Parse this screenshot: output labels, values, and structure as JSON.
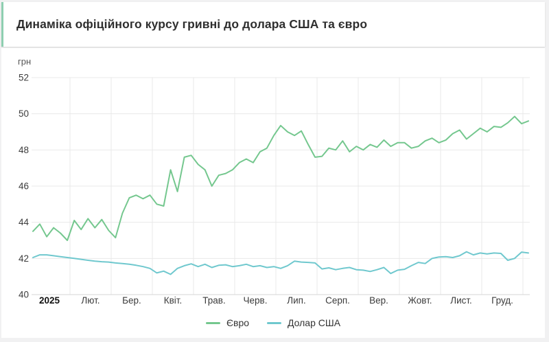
{
  "page": {
    "title": "Динаміка офіційного курсу гривні до долара США та євро"
  },
  "colors": {
    "accent": "#8ecfb0",
    "grid": "#e9e9e9",
    "axis": "#d6d6d6",
    "page_bg": "#f1f1f2",
    "card_bg": "#ffffff",
    "euro_line": "#74c78e",
    "usd_line": "#6fc8ce"
  },
  "chart_data": {
    "type": "line",
    "title": "Динаміка офіційного курсу гривні до долара США та євро",
    "unit_label": "грн",
    "ylabel": "грн",
    "xlabel": "",
    "ylim": [
      40,
      52
    ],
    "y_ticks": [
      52,
      50,
      48,
      46,
      44,
      42,
      40
    ],
    "x_labels": [
      "2025",
      "Лют.",
      "Бер.",
      "Квіт.",
      "Трав.",
      "Черв.",
      "Лип.",
      "Серп.",
      "Вер.",
      "Жовт.",
      "Лист.",
      "Груд."
    ],
    "grid": true,
    "legend_position": "bottom",
    "series": [
      {
        "name": "Євро",
        "color": "#74c78e",
        "values": [
          43.5,
          43.9,
          43.2,
          43.7,
          43.4,
          43.0,
          44.1,
          43.6,
          44.2,
          43.7,
          44.15,
          43.55,
          43.15,
          44.5,
          45.35,
          45.5,
          45.3,
          45.5,
          45.0,
          44.9,
          46.9,
          45.7,
          47.6,
          47.7,
          47.2,
          46.9,
          46.0,
          46.6,
          46.7,
          46.9,
          47.3,
          47.5,
          47.3,
          47.9,
          48.1,
          48.8,
          49.35,
          49.0,
          48.8,
          49.05,
          48.3,
          47.6,
          47.65,
          48.1,
          48.0,
          48.5,
          47.9,
          48.2,
          48.0,
          48.3,
          48.15,
          48.55,
          48.2,
          48.4,
          48.4,
          48.1,
          48.2,
          48.5,
          48.65,
          48.4,
          48.55,
          48.9,
          49.1,
          48.6,
          48.9,
          49.2,
          49.0,
          49.3,
          49.25,
          49.5,
          49.85,
          49.45,
          49.6
        ]
      },
      {
        "name": "Долар США",
        "color": "#6fc8ce",
        "values": [
          42.05,
          42.2,
          42.2,
          42.15,
          42.1,
          42.05,
          42.0,
          41.95,
          41.9,
          41.85,
          41.82,
          41.8,
          41.75,
          41.72,
          41.68,
          41.62,
          41.55,
          41.45,
          41.2,
          41.3,
          41.12,
          41.45,
          41.6,
          41.7,
          41.55,
          41.68,
          41.5,
          41.62,
          41.65,
          41.55,
          41.6,
          41.68,
          41.55,
          41.6,
          41.5,
          41.55,
          41.45,
          41.6,
          41.85,
          41.8,
          41.78,
          41.75,
          41.42,
          41.48,
          41.38,
          41.45,
          41.5,
          41.38,
          41.35,
          41.28,
          41.38,
          41.5,
          41.17,
          41.35,
          41.4,
          41.6,
          41.78,
          41.72,
          42.0,
          42.08,
          42.1,
          42.05,
          42.15,
          42.37,
          42.2,
          42.3,
          42.25,
          42.3,
          42.28,
          41.9,
          42.0,
          42.35,
          42.3
        ]
      }
    ]
  }
}
